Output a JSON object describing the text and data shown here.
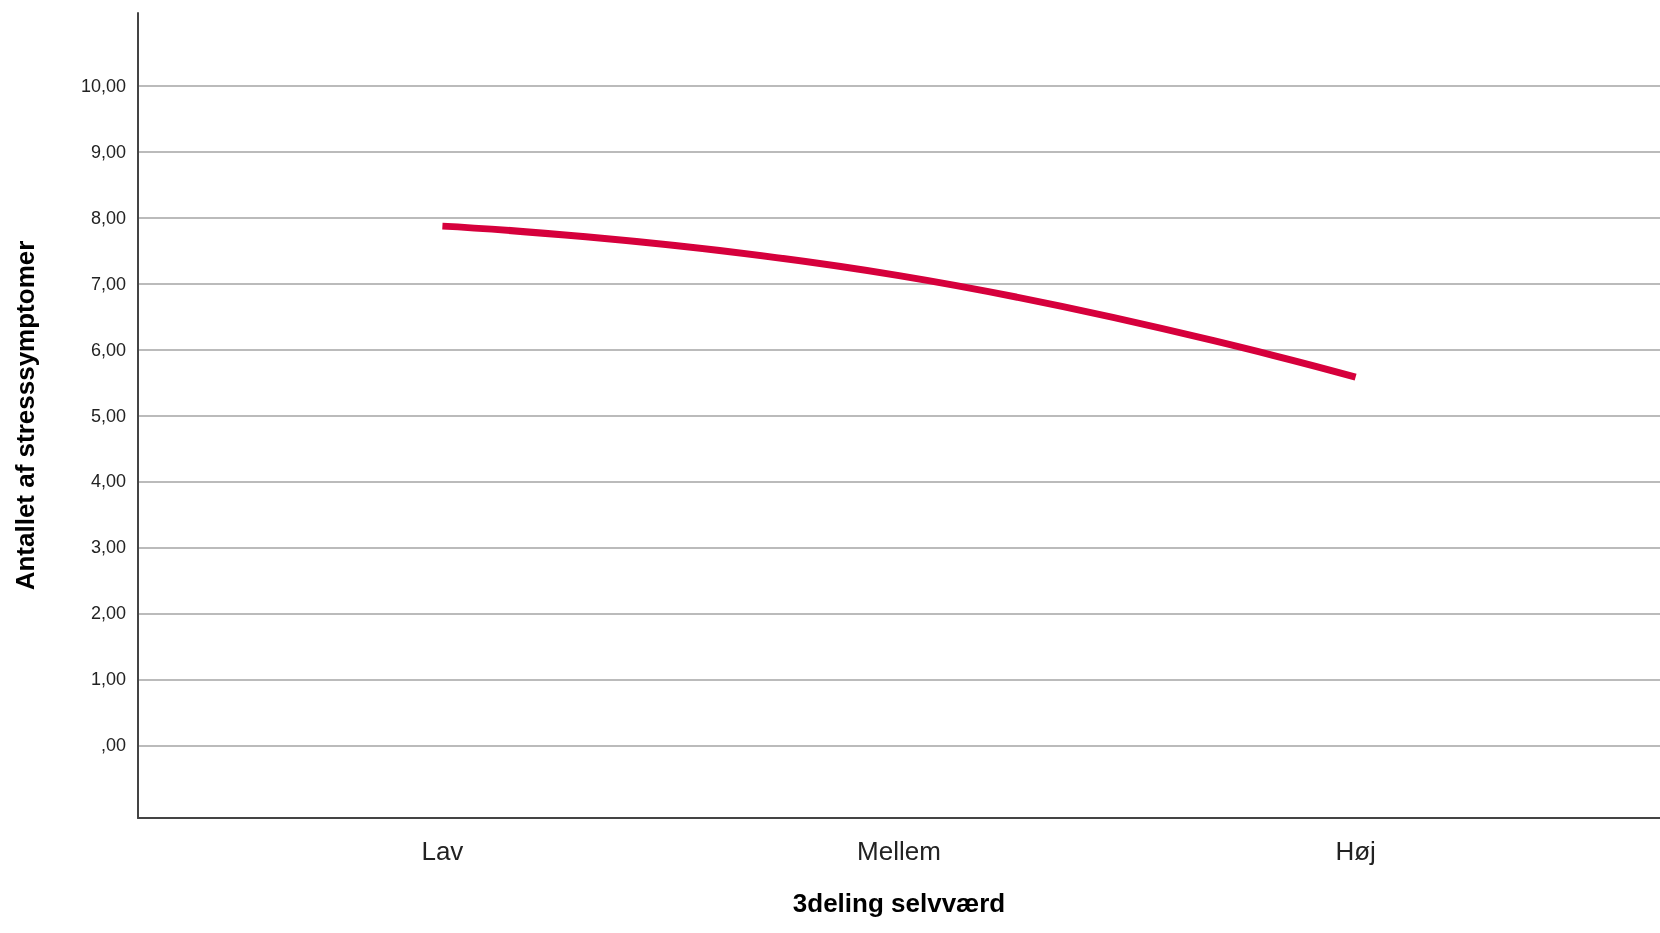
{
  "chart_data": {
    "type": "line",
    "xlabel": "3deling selvværd",
    "ylabel": "Antallet af stresssymptomer",
    "categories": [
      "Lav",
      "Mellem",
      "Høj"
    ],
    "series": [
      {
        "color": "#d6003c",
        "values": [
          7.87,
          7.12,
          5.58
        ]
      }
    ],
    "ylim": [
      -1.1,
      11.1
    ],
    "yticks": [
      {
        "value": 0,
        "label": ",00"
      },
      {
        "value": 1,
        "label": "1,00"
      },
      {
        "value": 2,
        "label": "2,00"
      },
      {
        "value": 3,
        "label": "3,00"
      },
      {
        "value": 4,
        "label": "4,00"
      },
      {
        "value": 5,
        "label": "5,00"
      },
      {
        "value": 6,
        "label": "6,00"
      },
      {
        "value": 7,
        "label": "7,00"
      },
      {
        "value": 8,
        "label": "8,00"
      },
      {
        "value": 9,
        "label": "9,00"
      },
      {
        "value": 10,
        "label": "10,00"
      }
    ],
    "grid": "y",
    "marker": "none",
    "line_style": "solid"
  }
}
